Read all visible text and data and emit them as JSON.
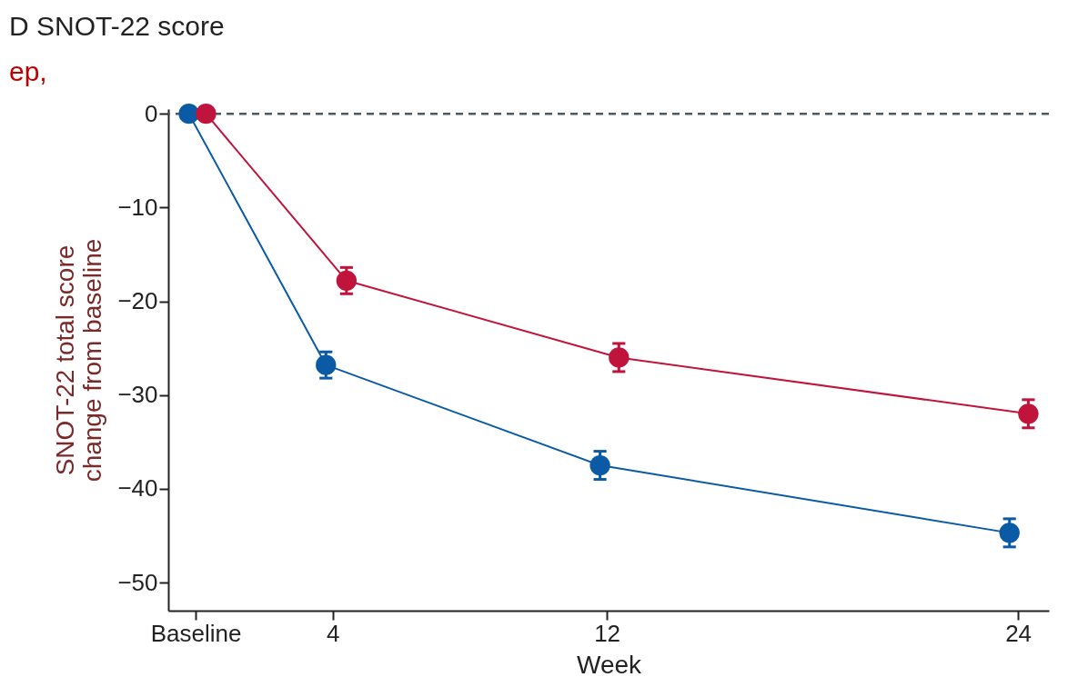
{
  "chart_data": {
    "type": "line",
    "title": "D  SNOT-22 score",
    "xlabel": "Week",
    "ylabel": "SNOT-22 total score\nchange from baseline",
    "series": [
      {
        "color": "#0a5aa5",
        "x": [
          -0.2,
          3.8,
          11.8,
          23.75
        ],
        "values": [
          0,
          -26.8,
          -37.5,
          -44.7
        ],
        "errors": [
          null,
          1.4,
          1.5,
          1.5
        ]
      },
      {
        "color": "#c0143c",
        "x": [
          0.3,
          4.4,
          12.35,
          24.3
        ],
        "values": [
          0,
          -17.8,
          -26.0,
          -32.0
        ],
        "errors": [
          null,
          1.4,
          1.5,
          1.5
        ]
      }
    ],
    "xlim": [
      -0.8,
      24.9
    ],
    "ylim": [
      -53,
      0.5
    ],
    "xticks": [
      {
        "value": 0,
        "label": "Baseline"
      },
      4,
      12,
      24
    ],
    "yticks": [
      0,
      {
        "value": -10,
        "label": "−10"
      },
      {
        "value": -20,
        "label": "−20"
      },
      {
        "value": -30,
        "label": "−30"
      },
      {
        "value": -40,
        "label": "−40"
      },
      {
        "value": -50,
        "label": "−50"
      }
    ],
    "ref_lines": [
      {
        "axis": "y",
        "value": 0,
        "color": "#4a5a66",
        "line_style": "dashed"
      }
    ],
    "marker": "circle",
    "line_style": "solid",
    "grid": false,
    "legend": false,
    "annotations": [
      "ep,"
    ]
  }
}
